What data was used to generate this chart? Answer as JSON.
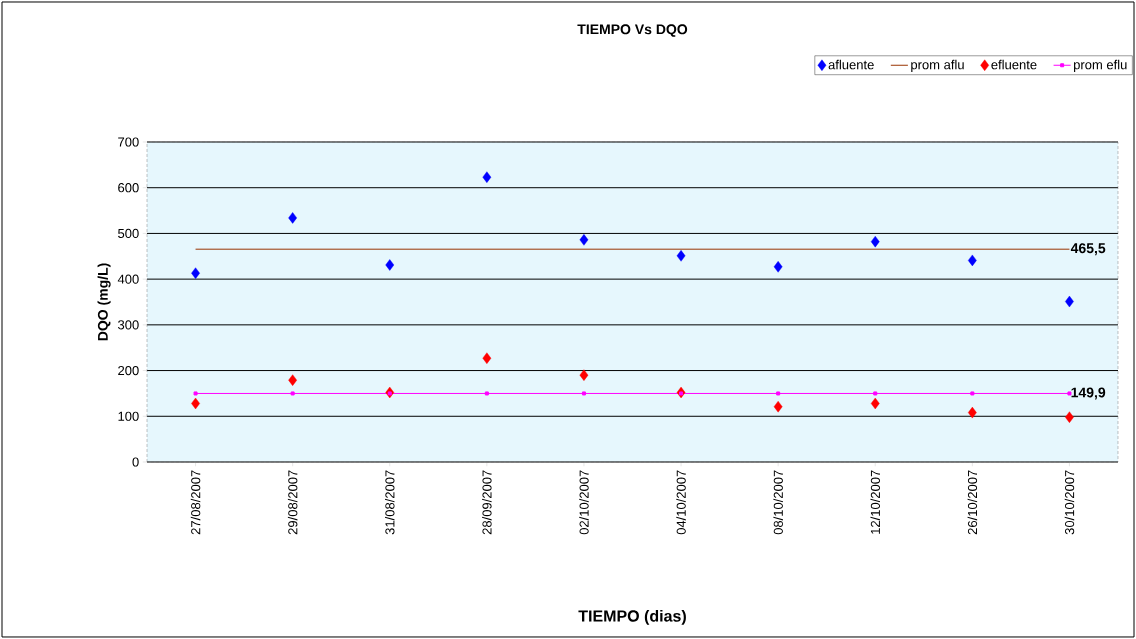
{
  "chart_data": {
    "type": "scatter",
    "title": "TIEMPO Vs DQO",
    "xlabel": "TIEMPO (dias)",
    "ylabel": "DQO (mg/L)",
    "categories": [
      "27/08/2007",
      "29/08/2007",
      "31/08/2007",
      "28/09/2007",
      "02/10/2007",
      "04/10/2007",
      "08/10/2007",
      "12/10/2007",
      "26/10/2007",
      "30/10/2007"
    ],
    "series": [
      {
        "name": "afluente",
        "marker": "diamond",
        "color": "#0000ff",
        "values": [
          413,
          534,
          431,
          623,
          486,
          451,
          427,
          482,
          441,
          351
        ]
      },
      {
        "name": "prom aflu",
        "type": "line",
        "marker": "none",
        "color": "#993300",
        "values": [
          465.5,
          465.5,
          465.5,
          465.5,
          465.5,
          465.5,
          465.5,
          465.5,
          465.5,
          465.5
        ],
        "value_labels": [
          null,
          null,
          null,
          null,
          null,
          null,
          null,
          null,
          null,
          "465,5"
        ]
      },
      {
        "name": "efluente",
        "marker": "diamond",
        "color": "#ff0000",
        "values": [
          128,
          179,
          152,
          227,
          190,
          152,
          121,
          128,
          108,
          98
        ]
      },
      {
        "name": "prom eflu",
        "type": "line",
        "marker": "square",
        "color": "#ff00ff",
        "values": [
          149.9,
          149.9,
          149.9,
          149.9,
          149.9,
          149.9,
          149.9,
          149.9,
          149.9,
          149.9
        ],
        "value_labels": [
          null,
          null,
          null,
          null,
          null,
          null,
          null,
          null,
          null,
          "149,9"
        ]
      }
    ],
    "ylim": [
      0,
      700
    ],
    "yticks": [
      0,
      100,
      200,
      300,
      400,
      500,
      600,
      700
    ],
    "grid": "y",
    "legend": "top right"
  }
}
